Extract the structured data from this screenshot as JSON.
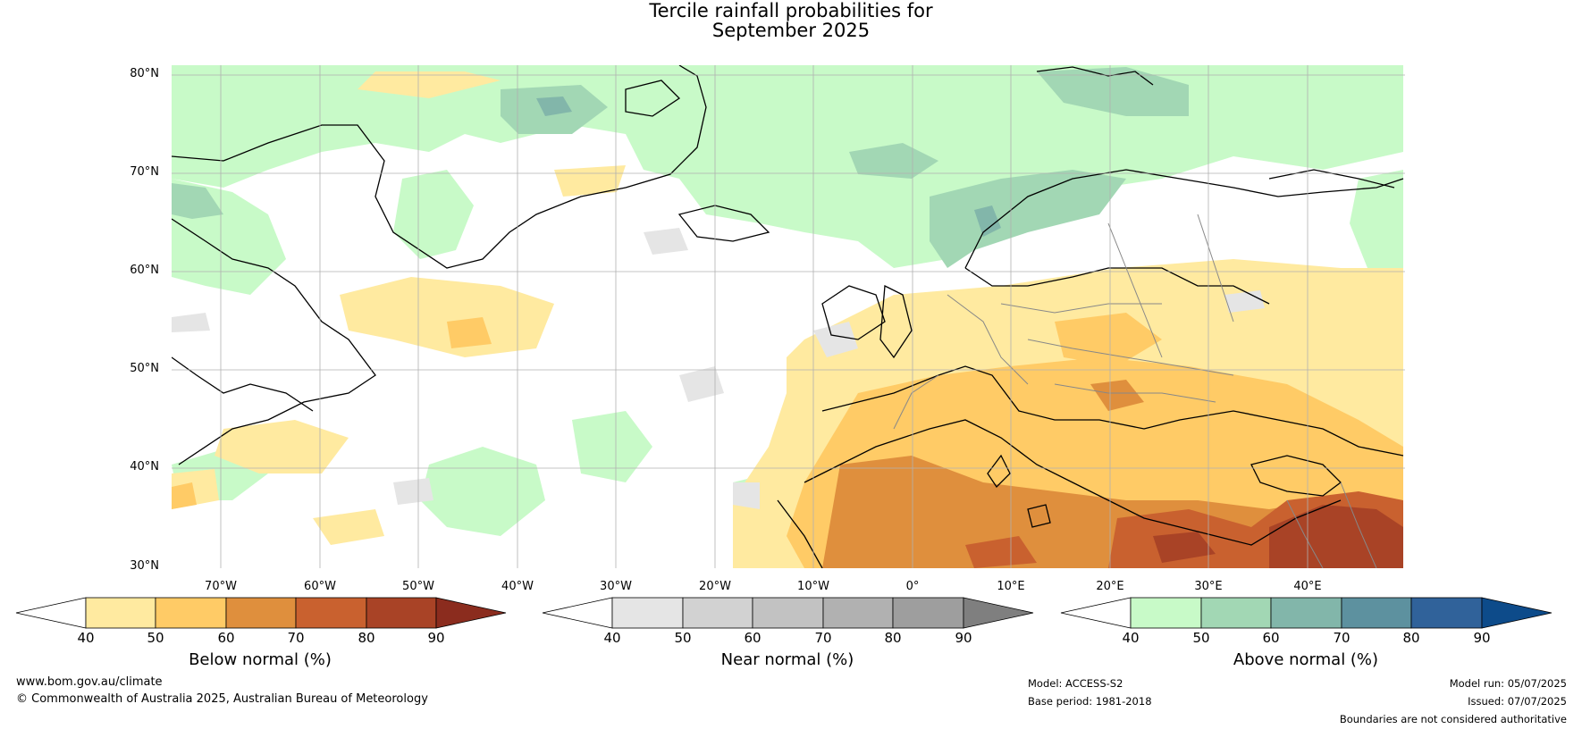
{
  "title": {
    "line1": "Tercile rainfall probabilities for",
    "line2": "September 2025"
  },
  "map": {
    "lat_labels": [
      "80°N",
      "70°N",
      "60°N",
      "50°N",
      "40°N",
      "30°N"
    ],
    "lon_labels": [
      "70°W",
      "60°W",
      "50°W",
      "40°W",
      "30°W",
      "20°W",
      "10°W",
      "0°",
      "10°E",
      "20°E",
      "30°E",
      "40°E"
    ],
    "colors": {
      "land_outline": "#000000",
      "borders": "#888888",
      "grid": "#b0b0b0"
    }
  },
  "colorbars": [
    {
      "label": "Below normal (%)",
      "ticks": [
        "40",
        "50",
        "60",
        "70",
        "80",
        "90"
      ],
      "colors": [
        "#ffffff",
        "#ffeaa0",
        "#ffcb66",
        "#df8f3d",
        "#c9612f",
        "#a94326",
        "#8b2c1e"
      ]
    },
    {
      "label": "Near normal (%)",
      "ticks": [
        "40",
        "50",
        "60",
        "70",
        "80",
        "90"
      ],
      "colors": [
        "#ffffff",
        "#e5e5e5",
        "#d2d2d2",
        "#c2c2c2",
        "#b1b1b1",
        "#9e9e9e",
        "#7f7f7f"
      ]
    },
    {
      "label": "Above normal (%)",
      "ticks": [
        "40",
        "50",
        "60",
        "70",
        "80",
        "90"
      ],
      "colors": [
        "#ffffff",
        "#c8fac8",
        "#a2d7b4",
        "#82b6aa",
        "#5d919f",
        "#30629a",
        "#0d4b8a"
      ]
    }
  ],
  "footer": {
    "website": "www.bom.gov.au/climate",
    "copyright": "© Commonwealth of Australia 2025, Australian Bureau of Meteorology",
    "model": "Model: ACCESS-S2",
    "base_period": "Base period: 1981-2018",
    "model_run": "Model run: 05/07/2025",
    "issued": "Issued: 07/07/2025",
    "disclaimer": "Boundaries are not considered authoritative"
  }
}
